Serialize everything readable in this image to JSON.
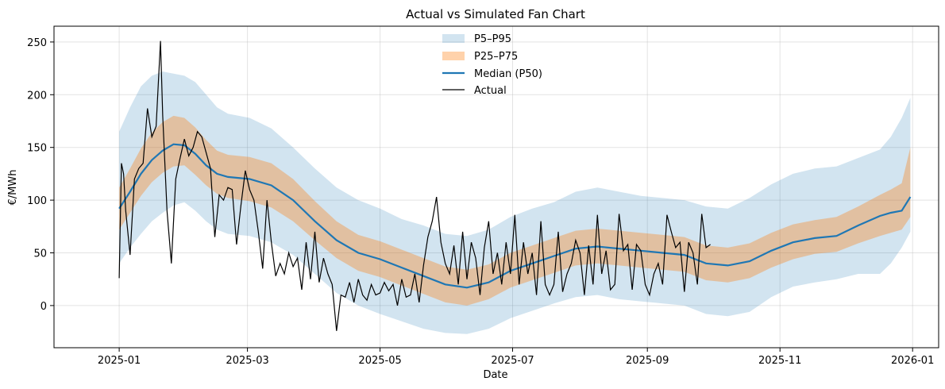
{
  "chart_data": {
    "type": "line",
    "title": "Actual vs Simulated Fan Chart",
    "xlabel": "Date",
    "ylabel": "€/MWh",
    "ylim": [
      -40,
      265
    ],
    "xlim_days": [
      -30,
      377
    ],
    "grid": true,
    "legend_position": "top-center",
    "colors": {
      "p5_p95": "#1f77b4",
      "p25_p75": "#ff7f0e",
      "median": "#1f77b4",
      "actual": "#000000"
    },
    "x_ticks": [
      {
        "day": 0,
        "label": "2025-01"
      },
      {
        "day": 59,
        "label": "2025-03"
      },
      {
        "day": 120,
        "label": "2025-05"
      },
      {
        "day": 181,
        "label": "2025-07"
      },
      {
        "day": 243,
        "label": "2025-09"
      },
      {
        "day": 304,
        "label": "2025-11"
      },
      {
        "day": 365,
        "label": "2026-01"
      }
    ],
    "y_ticks": [
      0,
      50,
      100,
      150,
      200,
      250
    ],
    "legend": [
      "P5–P95",
      "P25–P75",
      "Median (P50)",
      "Actual"
    ],
    "series": [
      {
        "name": "Median (P50)",
        "x": [
          0,
          5,
          10,
          15,
          20,
          25,
          30,
          35,
          40,
          45,
          50,
          60,
          70,
          80,
          90,
          100,
          110,
          120,
          130,
          140,
          150,
          160,
          170,
          180,
          190,
          200,
          210,
          220,
          230,
          240,
          250,
          260,
          270,
          280,
          290,
          300,
          310,
          320,
          330,
          340,
          350,
          355,
          360,
          364
        ],
        "values": [
          92,
          108,
          125,
          138,
          147,
          153,
          152,
          144,
          133,
          125,
          122,
          120,
          114,
          100,
          80,
          62,
          50,
          44,
          36,
          28,
          20,
          17,
          22,
          33,
          40,
          47,
          54,
          56,
          54,
          52,
          50,
          48,
          40,
          38,
          42,
          52,
          60,
          64,
          66,
          76,
          85,
          88,
          90,
          103
        ]
      },
      {
        "name": "P25",
        "x": [
          0,
          5,
          10,
          15,
          20,
          25,
          30,
          35,
          40,
          45,
          50,
          60,
          70,
          80,
          90,
          100,
          110,
          120,
          130,
          140,
          150,
          160,
          170,
          180,
          190,
          200,
          210,
          220,
          230,
          240,
          250,
          260,
          270,
          280,
          290,
          300,
          310,
          320,
          330,
          340,
          350,
          355,
          360,
          364
        ],
        "values": [
          72,
          88,
          104,
          117,
          126,
          132,
          133,
          124,
          114,
          106,
          102,
          99,
          93,
          80,
          62,
          45,
          33,
          27,
          19,
          11,
          3,
          0,
          6,
          17,
          24,
          31,
          38,
          40,
          38,
          36,
          34,
          32,
          24,
          22,
          26,
          36,
          44,
          49,
          51,
          59,
          66,
          69,
          72,
          84
        ]
      },
      {
        "name": "P75",
        "x": [
          0,
          5,
          10,
          15,
          20,
          25,
          30,
          35,
          40,
          45,
          50,
          60,
          70,
          80,
          90,
          100,
          110,
          120,
          130,
          140,
          150,
          160,
          170,
          180,
          190,
          200,
          210,
          220,
          230,
          240,
          250,
          260,
          270,
          280,
          290,
          300,
          310,
          320,
          330,
          340,
          350,
          355,
          360,
          364
        ],
        "values": [
          112,
          130,
          149,
          164,
          174,
          180,
          178,
          169,
          157,
          147,
          143,
          141,
          135,
          120,
          99,
          80,
          67,
          61,
          53,
          45,
          37,
          34,
          39,
          50,
          57,
          64,
          71,
          73,
          71,
          69,
          67,
          65,
          57,
          55,
          59,
          69,
          77,
          81,
          84,
          94,
          105,
          110,
          116,
          150
        ]
      },
      {
        "name": "P5",
        "x": [
          0,
          5,
          10,
          15,
          20,
          25,
          30,
          35,
          40,
          45,
          50,
          60,
          70,
          80,
          90,
          100,
          110,
          120,
          130,
          140,
          150,
          160,
          170,
          180,
          190,
          200,
          210,
          220,
          230,
          240,
          250,
          260,
          270,
          280,
          290,
          300,
          310,
          320,
          330,
          340,
          350,
          355,
          360,
          364
        ],
        "values": [
          40,
          55,
          68,
          80,
          88,
          95,
          98,
          90,
          80,
          72,
          68,
          66,
          60,
          48,
          30,
          12,
          0,
          -8,
          -15,
          -22,
          -26,
          -27,
          -22,
          -12,
          -5,
          2,
          8,
          10,
          6,
          4,
          2,
          0,
          -8,
          -10,
          -6,
          8,
          18,
          22,
          25,
          30,
          30,
          40,
          55,
          70
        ]
      },
      {
        "name": "P95",
        "x": [
          0,
          5,
          10,
          15,
          20,
          25,
          30,
          35,
          40,
          45,
          50,
          60,
          70,
          80,
          90,
          100,
          110,
          120,
          130,
          140,
          150,
          160,
          170,
          180,
          190,
          200,
          210,
          220,
          230,
          240,
          250,
          260,
          270,
          280,
          290,
          300,
          310,
          320,
          330,
          340,
          350,
          355,
          360,
          364
        ],
        "values": [
          165,
          188,
          208,
          218,
          222,
          220,
          218,
          212,
          200,
          188,
          182,
          178,
          168,
          150,
          130,
          112,
          100,
          92,
          82,
          76,
          68,
          66,
          72,
          84,
          92,
          98,
          108,
          112,
          108,
          104,
          102,
          100,
          94,
          92,
          102,
          115,
          125,
          130,
          132,
          140,
          148,
          160,
          178,
          197
        ]
      },
      {
        "name": "Actual",
        "x": [
          0,
          1,
          2,
          3,
          5,
          7,
          9,
          11,
          13,
          15,
          17,
          19,
          20,
          22,
          24,
          26,
          28,
          30,
          32,
          34,
          36,
          38,
          40,
          42,
          44,
          46,
          48,
          50,
          52,
          54,
          56,
          58,
          60,
          62,
          64,
          66,
          68,
          70,
          72,
          74,
          76,
          78,
          80,
          82,
          84,
          86,
          88,
          90,
          92,
          94,
          96,
          98,
          100,
          102,
          104,
          106,
          108,
          110,
          112,
          114,
          116,
          118,
          120,
          122,
          124,
          126,
          128,
          130,
          132,
          134,
          136,
          138,
          140,
          142,
          144,
          146,
          148,
          150,
          152,
          154,
          156,
          158,
          160,
          162,
          164,
          166,
          168,
          170,
          172,
          174,
          176,
          178,
          180,
          182,
          184,
          186,
          188,
          190,
          192,
          194,
          196,
          198,
          200,
          202,
          204,
          206,
          208,
          210,
          212,
          214,
          216,
          218,
          220,
          222,
          224,
          226,
          228,
          230,
          232,
          234,
          236,
          238,
          240,
          242,
          244,
          246,
          248,
          250,
          252,
          254,
          256,
          258,
          260,
          262,
          264,
          266,
          268,
          270,
          272
        ],
        "values": [
          26,
          135,
          125,
          90,
          48,
          120,
          130,
          135,
          187,
          160,
          170,
          251,
          180,
          90,
          40,
          120,
          140,
          158,
          142,
          150,
          165,
          160,
          145,
          130,
          65,
          105,
          100,
          112,
          110,
          58,
          95,
          128,
          110,
          100,
          70,
          35,
          100,
          60,
          28,
          40,
          30,
          50,
          37,
          45,
          15,
          60,
          25,
          70,
          22,
          45,
          30,
          20,
          -24,
          10,
          8,
          22,
          3,
          25,
          10,
          5,
          20,
          10,
          12,
          22,
          14,
          20,
          0,
          25,
          8,
          10,
          30,
          3,
          38,
          65,
          80,
          103,
          60,
          40,
          30,
          57,
          20,
          70,
          25,
          60,
          45,
          10,
          55,
          80,
          30,
          50,
          20,
          60,
          30,
          86,
          20,
          60,
          30,
          50,
          10,
          80,
          20,
          10,
          20,
          70,
          13,
          30,
          40,
          62,
          50,
          10,
          57,
          20,
          86,
          30,
          52,
          15,
          20,
          87,
          52,
          58,
          15,
          58,
          52,
          20,
          10,
          30,
          40,
          20,
          86,
          70,
          55,
          60,
          13,
          60,
          50,
          20,
          87,
          55,
          58
        ]
      }
    ]
  }
}
